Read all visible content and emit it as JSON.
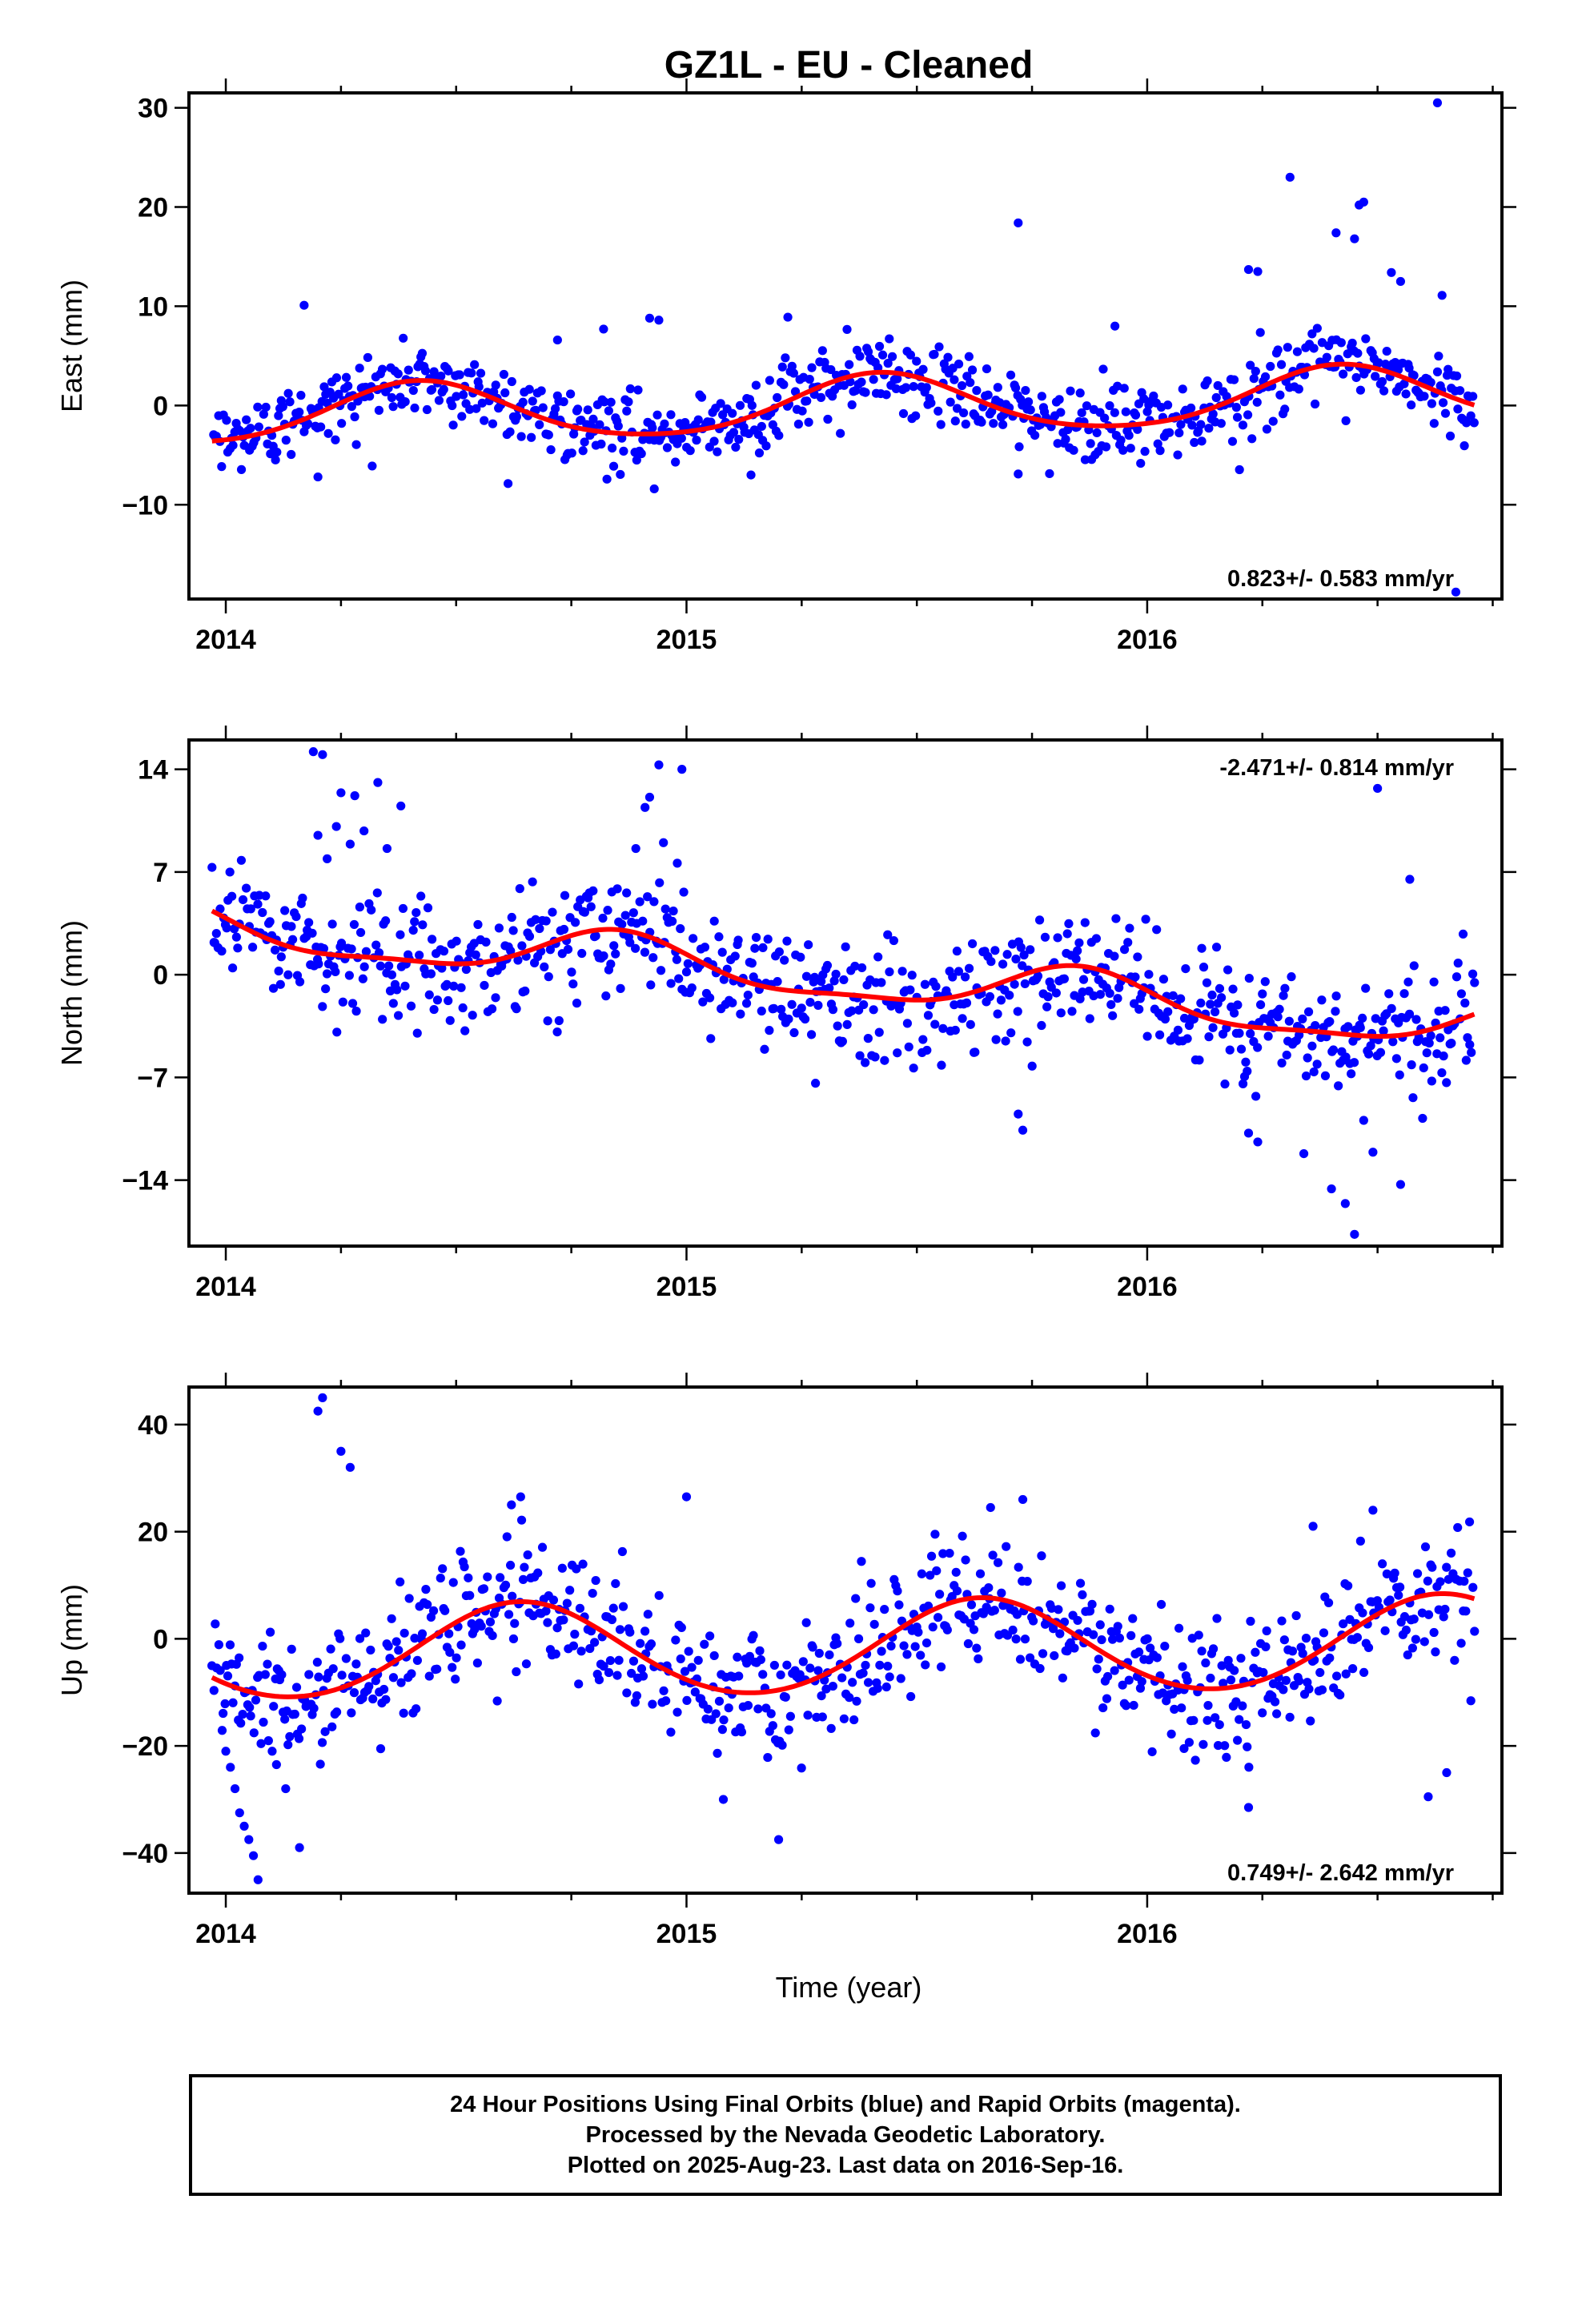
{
  "title": "GZ1L  - EU - Cleaned",
  "xlabel": "Time (year)",
  "colors": {
    "points": "#0000ff",
    "fit": "#ff0000",
    "frame": "#000000"
  },
  "footer": {
    "line1": "24 Hour Positions Using Final Orbits (blue) and Rapid Orbits (magenta).",
    "line2": "Processed by the Nevada Geodetic Laboratory.",
    "line3": "Plotted on 2025-Aug-23. Last data on 2016-Sep-16."
  },
  "chart_data": [
    {
      "type": "scatter",
      "ylabel": "East (mm)",
      "rate_text": "0.823+/- 0.583 mm/yr",
      "rate_position": "bottom-right",
      "x_range": [
        2013.92,
        2016.77
      ],
      "ylim": [
        -19.5,
        31.5
      ],
      "x_ticks": [
        2014,
        2015,
        2016
      ],
      "y_ticks": [
        -10,
        0,
        10,
        20,
        30
      ],
      "y_tick_labels": [
        "−10",
        "0",
        "10",
        "20",
        "30"
      ],
      "fit": {
        "rate_mm_per_yr": 0.823,
        "intercept_at_2015": -0.3,
        "annual_amp": 2.9,
        "annual_peak_year_fraction": 0.42,
        "semiannual_amp": 0.4
      },
      "points_summary": {
        "start": 2013.97,
        "end": 2016.71,
        "count": 780,
        "scatter_mm": 1.9
      },
      "outliers": [
        [
          2016.63,
          30.5
        ],
        [
          2016.31,
          23.0
        ],
        [
          2016.47,
          20.5
        ],
        [
          2016.46,
          20.2
        ],
        [
          2015.72,
          18.4
        ],
        [
          2016.41,
          17.4
        ],
        [
          2016.45,
          16.8
        ],
        [
          2016.22,
          13.7
        ],
        [
          2016.24,
          13.5
        ],
        [
          2016.53,
          13.4
        ],
        [
          2016.55,
          12.5
        ],
        [
          2016.64,
          11.1
        ],
        [
          2014.17,
          10.1
        ],
        [
          2014.92,
          8.8
        ],
        [
          2014.94,
          8.6
        ],
        [
          2015.22,
          8.9
        ],
        [
          2015.93,
          8.0
        ],
        [
          2014.82,
          7.7
        ],
        [
          2014.72,
          6.6
        ],
        [
          2016.67,
          -18.8
        ],
        [
          2014.93,
          -8.4
        ],
        [
          2014.2,
          -7.2
        ],
        [
          2015.72,
          -6.9
        ],
        [
          2015.14,
          -7.0
        ]
      ]
    },
    {
      "type": "scatter",
      "ylabel": "North (mm)",
      "rate_text": "-2.471+/- 0.814 mm/yr",
      "rate_position": "top-right",
      "x_range": [
        2013.92,
        2016.77
      ],
      "ylim": [
        -18.5,
        16.0
      ],
      "x_ticks": [
        2014,
        2015,
        2016
      ],
      "y_ticks": [
        -14,
        -7,
        0,
        7,
        14
      ],
      "y_tick_labels": [
        "−14",
        "−7",
        "0",
        "7",
        "14"
      ],
      "fit": {
        "rate_mm_per_yr": -2.471,
        "intercept_at_2015": 0.6,
        "annual_amp": 1.6,
        "annual_peak_year_fraction": 0.85,
        "semiannual_amp": 0.5
      },
      "points_summary": {
        "start": 2013.97,
        "end": 2016.71,
        "count": 780,
        "scatter_mm": 2.0
      },
      "outliers": [
        [
          2014.19,
          15.2
        ],
        [
          2014.21,
          15.0
        ],
        [
          2014.25,
          12.4
        ],
        [
          2014.28,
          12.2
        ],
        [
          2014.33,
          13.1
        ],
        [
          2014.38,
          11.5
        ],
        [
          2014.2,
          9.5
        ],
        [
          2014.24,
          10.1
        ],
        [
          2014.3,
          9.8
        ],
        [
          2014.35,
          8.6
        ],
        [
          2014.27,
          8.9
        ],
        [
          2014.22,
          7.9
        ],
        [
          2014.94,
          14.3
        ],
        [
          2014.92,
          12.1
        ],
        [
          2014.91,
          11.4
        ],
        [
          2014.99,
          14.0
        ],
        [
          2014.89,
          8.6
        ],
        [
          2014.95,
          9.0
        ],
        [
          2014.98,
          7.6
        ],
        [
          2016.5,
          12.7
        ],
        [
          2016.57,
          6.5
        ],
        [
          2015.72,
          -9.5
        ],
        [
          2015.73,
          -10.6
        ],
        [
          2015.28,
          -7.4
        ],
        [
          2016.22,
          -10.8
        ],
        [
          2016.34,
          -12.2
        ],
        [
          2016.43,
          -15.6
        ],
        [
          2016.4,
          -14.6
        ],
        [
          2016.45,
          -17.7
        ],
        [
          2016.55,
          -14.3
        ],
        [
          2016.49,
          -12.1
        ],
        [
          2016.24,
          -11.4
        ]
      ]
    },
    {
      "type": "scatter",
      "ylabel": "Up (mm)",
      "rate_text": "0.749+/- 2.642 mm/yr",
      "rate_position": "bottom-right",
      "x_range": [
        2013.92,
        2016.77
      ],
      "ylim": [
        -47.5,
        47.0
      ],
      "x_ticks": [
        2014,
        2015,
        2016
      ],
      "y_ticks": [
        -40,
        -20,
        0,
        20,
        40
      ],
      "y_tick_labels": [
        "−40",
        "−20",
        "0",
        "20",
        "40"
      ],
      "fit": {
        "rate_mm_per_yr": 0.749,
        "intercept_at_2015": -2.0,
        "annual_amp": 8.7,
        "annual_peak_year_fraction": 0.64,
        "semiannual_amp": 0.5
      },
      "points_summary": {
        "start": 2013.97,
        "end": 2016.71,
        "count": 780,
        "scatter_mm": 6.0
      },
      "outliers": [
        [
          2014.21,
          45.0
        ],
        [
          2014.2,
          42.5
        ],
        [
          2014.25,
          35.0
        ],
        [
          2014.27,
          32.0
        ],
        [
          2014.64,
          26.5
        ],
        [
          2014.62,
          25.0
        ],
        [
          2015.0,
          26.5
        ],
        [
          2015.66,
          24.5
        ],
        [
          2015.73,
          26.0
        ],
        [
          2016.49,
          24.0
        ],
        [
          2016.36,
          21.0
        ],
        [
          2016.08,
          -20.5
        ],
        [
          2016.22,
          -31.5
        ],
        [
          2015.08,
          -30.0
        ],
        [
          2015.2,
          -37.5
        ],
        [
          2014.07,
          -45.0
        ],
        [
          2014.06,
          -40.5
        ],
        [
          2014.05,
          -37.5
        ],
        [
          2014.04,
          -35.0
        ],
        [
          2014.03,
          -32.5
        ],
        [
          2014.02,
          -28.0
        ],
        [
          2014.01,
          -24.0
        ],
        [
          2014.0,
          -21.0
        ],
        [
          2014.16,
          -39.0
        ],
        [
          2014.13,
          -28.0
        ],
        [
          2014.11,
          -23.5
        ],
        [
          2016.61,
          -29.5
        ],
        [
          2016.65,
          -25.0
        ]
      ]
    }
  ]
}
